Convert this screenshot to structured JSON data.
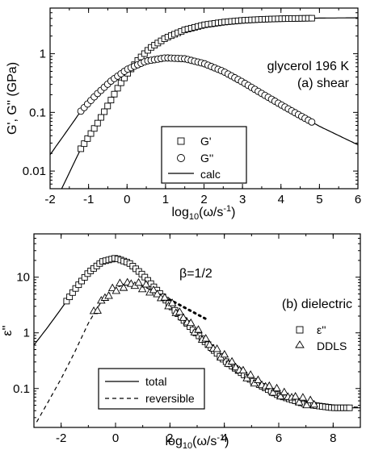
{
  "chart_data": [
    {
      "type": "scatter",
      "annotations": [
        "glycerol 196 K",
        "(a) shear"
      ],
      "xlabel": "log10(ω/s⁻¹)",
      "ylabel": "G', G'' (GPa)",
      "xlim": [
        -2,
        6
      ],
      "ylim": [
        0.005,
        6
      ],
      "y_scale": "log",
      "xticks": [
        "-2",
        "-1",
        "0",
        "1",
        "2",
        "3",
        "4",
        "5",
        "6"
      ],
      "yticks": [
        {
          "v": 0.01,
          "label": "0.01"
        },
        {
          "v": 0.1,
          "label": "0.1"
        },
        {
          "v": 1,
          "label": "1"
        }
      ],
      "legend": {
        "placement": "bottom-center",
        "entries": [
          {
            "label": "G'",
            "marker": "square"
          },
          {
            "label": "G''",
            "marker": "circle"
          },
          {
            "label": "calc",
            "marker": "line"
          }
        ]
      },
      "series": [
        {
          "name": "G'",
          "marker": "square",
          "range": [
            -1.2,
            4.8
          ],
          "n": 70,
          "curve": "Gp"
        },
        {
          "name": "G''",
          "marker": "circle",
          "range": [
            -1.2,
            4.8
          ],
          "n": 70,
          "curve": "Gpp"
        },
        {
          "name": "calc",
          "line": "solid",
          "curves": [
            "Gp",
            "Gpp"
          ],
          "range": [
            -2,
            6
          ]
        }
      ],
      "curve_points": {
        "Gp": [
          [
            -1.7,
            0.005
          ],
          [
            -1.2,
            0.024
          ],
          [
            -0.8,
            0.06
          ],
          [
            -0.5,
            0.13
          ],
          [
            -0.2,
            0.29
          ],
          [
            0,
            0.45
          ],
          [
            0.3,
            0.8
          ],
          [
            0.6,
            1.25
          ],
          [
            1.0,
            1.85
          ],
          [
            1.5,
            2.55
          ],
          [
            2.0,
            3.1
          ],
          [
            2.5,
            3.45
          ],
          [
            3.0,
            3.7
          ],
          [
            3.5,
            3.85
          ],
          [
            4.0,
            3.95
          ],
          [
            5.0,
            4.05
          ],
          [
            6.0,
            4.1
          ]
        ],
        "Gpp": [
          [
            -2.0,
            0.019
          ],
          [
            -1.5,
            0.055
          ],
          [
            -1.2,
            0.105
          ],
          [
            -0.8,
            0.2
          ],
          [
            -0.4,
            0.35
          ],
          [
            0,
            0.54
          ],
          [
            0.5,
            0.75
          ],
          [
            1.0,
            0.85
          ],
          [
            1.5,
            0.82
          ],
          [
            2.0,
            0.68
          ],
          [
            2.5,
            0.5
          ],
          [
            3.0,
            0.33
          ],
          [
            3.5,
            0.21
          ],
          [
            4.0,
            0.135
          ],
          [
            4.5,
            0.088
          ],
          [
            5.0,
            0.058
          ],
          [
            6.0,
            0.028
          ]
        ]
      }
    },
    {
      "type": "scatter",
      "annotations": [
        "(b) dielectric",
        "β=1/2"
      ],
      "xlabel": "log10(ω/s⁻¹)",
      "ylabel": "ε''",
      "xlim": [
        -3,
        9
      ],
      "ylim": [
        0.02,
        60
      ],
      "y_scale": "log",
      "xticks": [
        "-2",
        "0",
        "2",
        "4",
        "6",
        "8"
      ],
      "yticks": [
        {
          "v": 0.1,
          "label": "0.1"
        },
        {
          "v": 1,
          "label": "1"
        },
        {
          "v": 10,
          "label": "10"
        }
      ],
      "legend_markers": {
        "placement": "right",
        "entries": [
          {
            "label": "ε''",
            "marker": "square"
          },
          {
            "label": "DDLS",
            "marker": "triangle"
          }
        ]
      },
      "legend_lines": {
        "placement": "bottom-left",
        "entries": [
          {
            "label": "total",
            "line": "solid"
          },
          {
            "label": "reversible",
            "line": "dashed"
          }
        ]
      },
      "series": [
        {
          "name": "ε''",
          "marker": "square",
          "range": [
            -1.8,
            8.6
          ],
          "n": 95,
          "curve": "total"
        },
        {
          "name": "DDLS",
          "marker": "triangle",
          "range": [
            -0.8,
            7.3
          ],
          "n": 60,
          "curve": "rev",
          "noise": 0.06
        },
        {
          "name": "total",
          "line": "solid",
          "curve": "total",
          "range": [
            -3,
            9
          ]
        },
        {
          "name": "reversible",
          "line": "dashed",
          "curve": "rev",
          "range": [
            -2.9,
            9
          ]
        },
        {
          "name": "β=1/2",
          "line": "dotted",
          "points": [
            [
              1.6,
              5.0
            ],
            [
              3.3,
              1.8
            ]
          ]
        }
      ],
      "curve_points": {
        "total": [
          [
            -3.0,
            0.6
          ],
          [
            -2.5,
            1.25
          ],
          [
            -2.0,
            2.7
          ],
          [
            -1.5,
            6.0
          ],
          [
            -1.0,
            12.0
          ],
          [
            -0.5,
            19.0
          ],
          [
            0,
            22.0
          ],
          [
            0.5,
            18.0
          ],
          [
            1.0,
            11.0
          ],
          [
            1.5,
            6.0
          ],
          [
            2.0,
            3.2
          ],
          [
            2.5,
            1.7
          ],
          [
            3.0,
            0.95
          ],
          [
            3.5,
            0.55
          ],
          [
            4.0,
            0.32
          ],
          [
            5.0,
            0.14
          ],
          [
            6.0,
            0.075
          ],
          [
            7.0,
            0.052
          ],
          [
            8.0,
            0.045
          ],
          [
            9.0,
            0.045
          ]
        ],
        "rev": [
          [
            -2.9,
            0.025
          ],
          [
            -2.5,
            0.055
          ],
          [
            -2.0,
            0.15
          ],
          [
            -1.5,
            0.45
          ],
          [
            -1.0,
            1.5
          ],
          [
            -0.5,
            3.8
          ],
          [
            0,
            6.5
          ],
          [
            0.5,
            7.8
          ],
          [
            1.0,
            7.0
          ],
          [
            1.5,
            5.2
          ],
          [
            2.0,
            3.3
          ],
          [
            2.5,
            1.9
          ],
          [
            3.0,
            1.05
          ],
          [
            3.5,
            0.6
          ],
          [
            4.0,
            0.36
          ],
          [
            5.0,
            0.15
          ],
          [
            6.0,
            0.085
          ],
          [
            7.0,
            0.058
          ],
          [
            8.0,
            0.048
          ],
          [
            9.0,
            0.046
          ]
        ]
      }
    }
  ]
}
